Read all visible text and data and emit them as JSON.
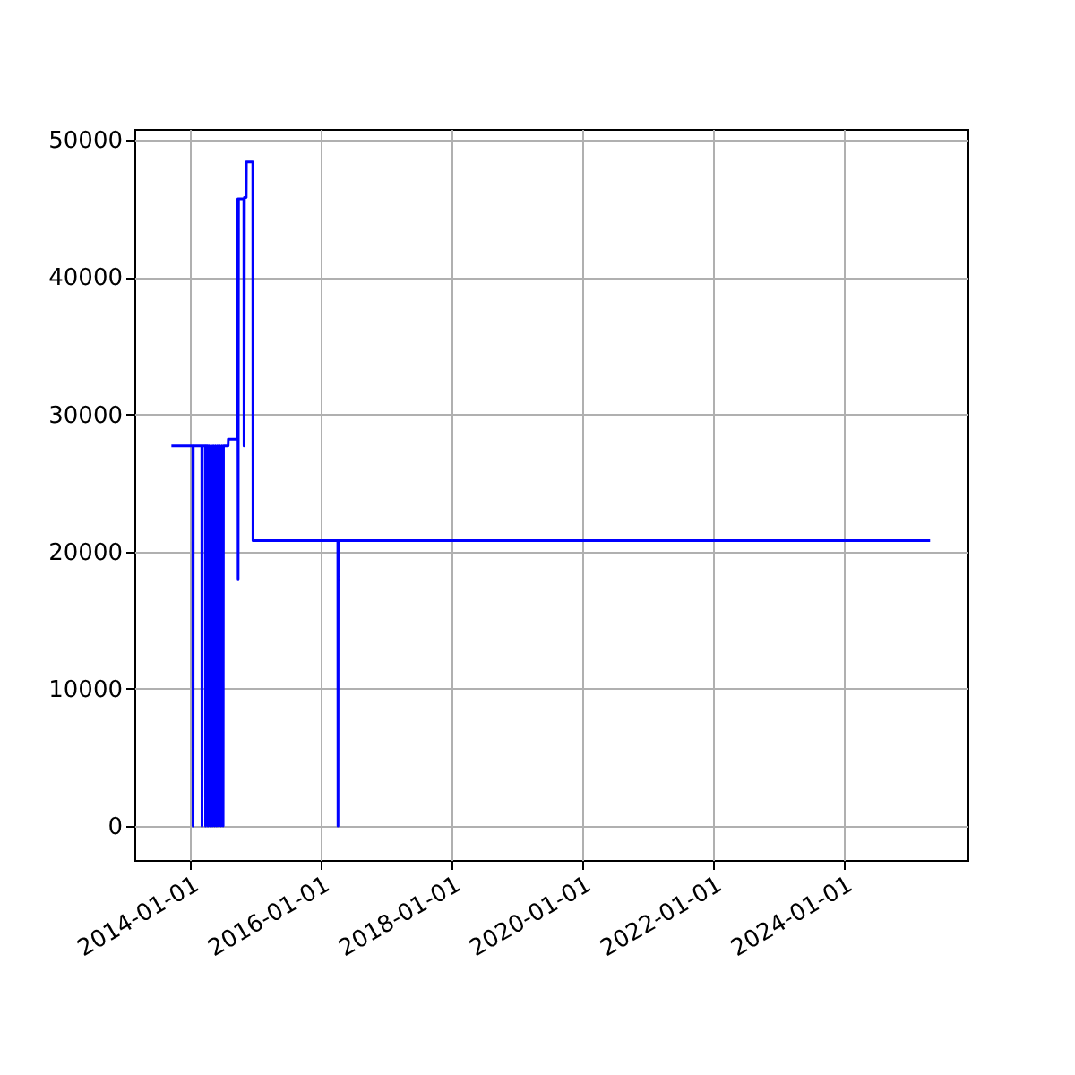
{
  "chart_data": {
    "type": "line",
    "xlim": [
      "2013-02-20",
      "2025-11-20"
    ],
    "xticks": [
      "2014-01-01",
      "2016-01-01",
      "2018-01-01",
      "2020-01-01",
      "2022-01-01",
      "2024-01-01"
    ],
    "ylim": [
      -2480,
      50800
    ],
    "yticks": [
      0,
      10000,
      20000,
      30000,
      40000,
      50000
    ],
    "grid": true,
    "legend": false,
    "series": [
      {
        "color": "#0000ff",
        "x": [
          "2013-09-15",
          "2014-01-13",
          "2014-01-14",
          "2014-01-15",
          "2014-03-04",
          "2014-03-05",
          "2014-03-06",
          "2014-03-24",
          "2014-03-25",
          "2014-03-26",
          "2014-04-07",
          "2014-04-08",
          "2014-04-14",
          "2014-04-20",
          "2014-04-26",
          "2014-05-02",
          "2014-05-08",
          "2014-05-14",
          "2014-05-20",
          "2014-05-26",
          "2014-06-01",
          "2014-06-07",
          "2014-06-13",
          "2014-06-19",
          "2014-06-25",
          "2014-07-01",
          "2014-07-03",
          "2014-07-29",
          "2014-07-30",
          "2014-09-20",
          "2014-09-21",
          "2014-09-23",
          "2014-09-25",
          "2014-10-25",
          "2014-10-26",
          "2014-10-28",
          "2014-11-07",
          "2014-11-08",
          "2014-12-14",
          "2014-12-15",
          "2016-04-02",
          "2016-04-03",
          "2016-04-04",
          "2025-04-25"
        ],
        "values": [
          27700,
          27700,
          0,
          27700,
          27700,
          0,
          27700,
          27700,
          0,
          27700,
          27700,
          0,
          27700,
          0,
          27700,
          0,
          27700,
          0,
          27700,
          0,
          27700,
          0,
          27700,
          0,
          27700,
          0,
          27700,
          27700,
          28200,
          28200,
          45700,
          18000,
          45700,
          45700,
          27700,
          45800,
          45800,
          48400,
          48400,
          20800,
          20800,
          0,
          20800,
          20800
        ]
      }
    ]
  }
}
